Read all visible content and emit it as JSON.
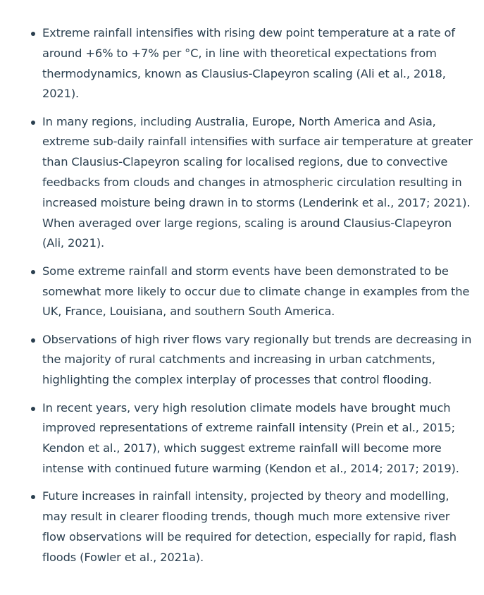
{
  "bullets": [
    "Extreme rainfall intensifies with rising dew point temperature at a rate of around +6% to +7% per °C, in line with theoretical expectations from thermodynamics, known as Clausius-Clapeyron scaling (Ali et al., 2018, 2021).",
    "In many regions, including Australia, Europe, North America and Asia, extreme sub-daily rainfall intensifies with surface air temperature at greater than Clausius-Clapeyron scaling for localised regions, due to convective feedbacks from clouds and changes in atmospheric circulation resulting in increased moisture being drawn in to storms (Lenderink et al., 2017; 2021). When averaged over large regions, scaling is around Clausius-Clapeyron (Ali, 2021).",
    "Some extreme rainfall and storm events have been demonstrated to be somewhat more likely to occur due to climate change in examples from the UK, France, Louisiana, and southern South America.",
    "Observations of high river flows vary regionally but trends are decreasing in the majority of rural catchments and increasing in urban catchments, highlighting the complex interplay of processes that control flooding.",
    "In recent years, very high resolution climate models have brought much improved representations of extreme rainfall intensity (Prein et al., 2015; Kendon et al., 2017), which suggest extreme rainfall will become more intense with continued future warming (Kendon et al., 2014; 2017; 2019).",
    "Future increases in rainfall intensity, projected by theory and modelling, may result in clearer flooding trends, though much more extensive river flow observations will be required for detection, especially for rapid, flash floods (Fowler et al., 2021a)."
  ],
  "colors": {
    "text": "#2a3f4f",
    "background": "#ffffff"
  }
}
